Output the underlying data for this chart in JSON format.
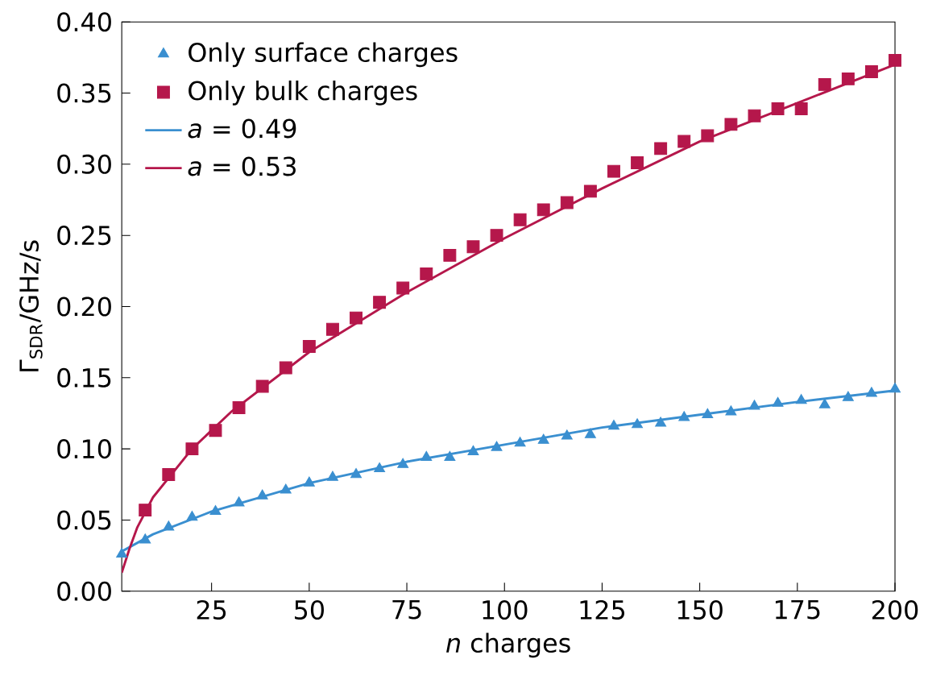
{
  "chart_data": {
    "type": "scatter",
    "xlabel": "*n* charges",
    "ylabel": "Γ$_{SDR}$/GHz/s",
    "xlim": [
      2,
      200
    ],
    "ylim": [
      0,
      0.4
    ],
    "xticks": [
      25,
      50,
      75,
      100,
      125,
      150,
      175,
      200
    ],
    "yticks": [
      {
        "value": 0,
        "label": "0.00"
      },
      {
        "value": 0.05,
        "label": "0.05"
      },
      {
        "value": 0.1,
        "label": "0.10"
      },
      {
        "value": 0.15,
        "label": "0.15"
      },
      {
        "value": 0.2,
        "label": "0.20"
      },
      {
        "value": 0.25,
        "label": "0.25"
      },
      {
        "value": 0.3,
        "label": "0.30"
      },
      {
        "value": 0.35,
        "label": "0.35"
      },
      {
        "value": 0.4,
        "label": "0.40"
      }
    ],
    "legend": "top left",
    "grid": false,
    "x": [
      2,
      8,
      14,
      20,
      26,
      32,
      38,
      44,
      50,
      56,
      62,
      68,
      74,
      80,
      86,
      92,
      98,
      104,
      110,
      116,
      122,
      128,
      134,
      140,
      146,
      152,
      158,
      164,
      170,
      176,
      182,
      188,
      194,
      200
    ],
    "series": [
      {
        "name": "Only surface charges",
        "marker": "triangle",
        "color": "#3a8fd0",
        "values": [
          0.026,
          0.036,
          0.045,
          0.052,
          0.056,
          0.062,
          0.067,
          0.071,
          0.076,
          0.08,
          0.082,
          0.086,
          0.089,
          0.094,
          0.094,
          0.098,
          0.101,
          0.104,
          0.106,
          0.109,
          0.11,
          0.116,
          0.117,
          0.118,
          0.122,
          0.124,
          0.126,
          0.13,
          0.132,
          0.134,
          0.131,
          0.136,
          0.139,
          0.142
        ]
      },
      {
        "name": "Only bulk charges",
        "marker": "square",
        "color": "#b5174b",
        "values": [
          null,
          0.057,
          0.082,
          0.1,
          0.113,
          0.129,
          0.144,
          0.157,
          0.172,
          0.184,
          0.192,
          0.203,
          0.213,
          0.223,
          0.236,
          0.242,
          0.25,
          0.261,
          0.268,
          0.273,
          0.281,
          0.295,
          0.301,
          0.311,
          0.316,
          0.32,
          0.328,
          0.334,
          0.339,
          0.339,
          0.356,
          0.36,
          0.365,
          0.373
        ]
      },
      {
        "name": "*a* = 0.49",
        "type": "line",
        "marker": "none",
        "line_style": "solid",
        "color": "#3a8fd0",
        "x": [
          2,
          10,
          25,
          50,
          75,
          100,
          125,
          150,
          175,
          200
        ],
        "values": [
          0.028,
          0.04,
          0.056,
          0.076,
          0.091,
          0.103,
          0.115,
          0.124,
          0.133,
          0.141
        ]
      },
      {
        "name": "*a* = 0.53",
        "type": "line",
        "marker": "none",
        "line_style": "solid",
        "color": "#b5174b",
        "x": [
          2,
          4,
          6,
          10,
          20,
          30,
          50,
          75,
          100,
          125,
          150,
          175,
          200
        ],
        "values": [
          0.013,
          0.03,
          0.045,
          0.066,
          0.1,
          0.126,
          0.168,
          0.21,
          0.248,
          0.283,
          0.316,
          0.343,
          0.37
        ]
      }
    ]
  }
}
